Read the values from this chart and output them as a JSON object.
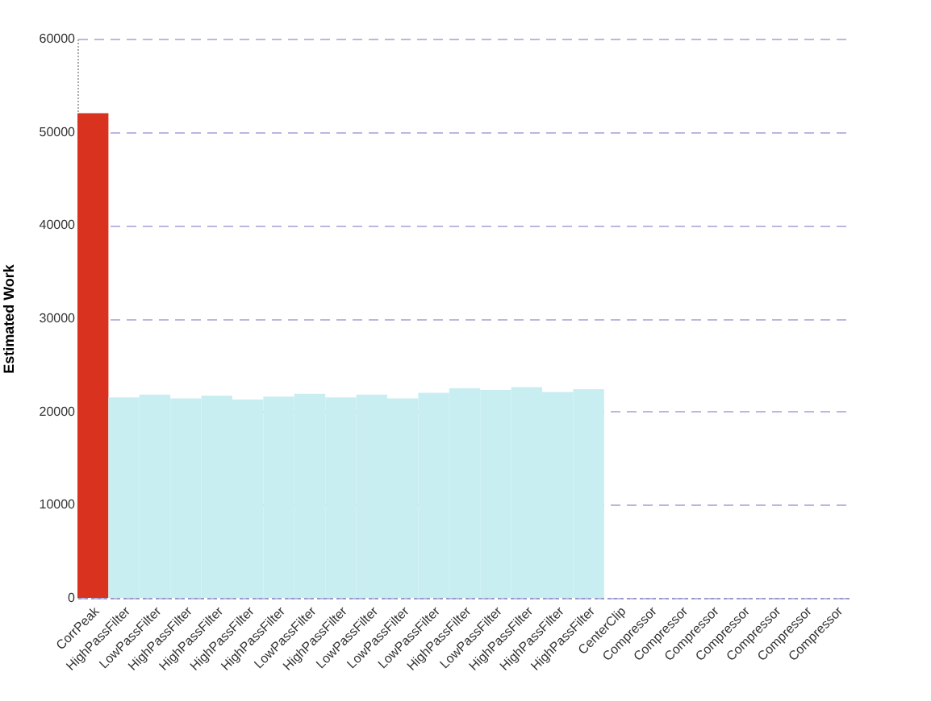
{
  "chart_data": {
    "type": "bar",
    "ylabel": "Estimated Work",
    "categories": [
      "CorrPeak",
      "HighPassFilter",
      "LowPassFilter",
      "HighPassFilter",
      "HighPassFilter",
      "HighPassFilter",
      "HighPassFilter",
      "LowPassFilter",
      "HighPassFilter",
      "LowPassFilter",
      "LowPassFilter",
      "LowPassFilter",
      "HighPassFilter",
      "LowPassFilter",
      "HighPassFilter",
      "HighPassFilter",
      "HighPassFilter",
      "CenterClip",
      "Compressor",
      "Compressor",
      "Compressor",
      "Compressor",
      "Compressor",
      "Compressor",
      "Compressor"
    ],
    "values": [
      52000,
      21500,
      21800,
      21400,
      21700,
      21300,
      21600,
      21900,
      21500,
      21800,
      21400,
      22000,
      22500,
      22300,
      22600,
      22100,
      22400,
      0,
      0,
      0,
      0,
      0,
      0,
      0,
      0
    ],
    "colors": [
      "#d9321e",
      "#c8eef2",
      "#c8eef2",
      "#c8eef2",
      "#c8eef2",
      "#c8eef2",
      "#c8eef2",
      "#c8eef2",
      "#c8eef2",
      "#c8eef2",
      "#c8eef2",
      "#c8eef2",
      "#c8eef2",
      "#c8eef2",
      "#c8eef2",
      "#c8eef2",
      "#c8eef2",
      "#c8eef2",
      "#c8eef2",
      "#c8eef2",
      "#c8eef2",
      "#c8eef2",
      "#c8eef2",
      "#c8eef2",
      "#c8eef2"
    ],
    "ylim": [
      0,
      60000
    ],
    "yticks": [
      0,
      10000,
      20000,
      30000,
      40000,
      50000,
      60000
    ],
    "grid": "y"
  }
}
